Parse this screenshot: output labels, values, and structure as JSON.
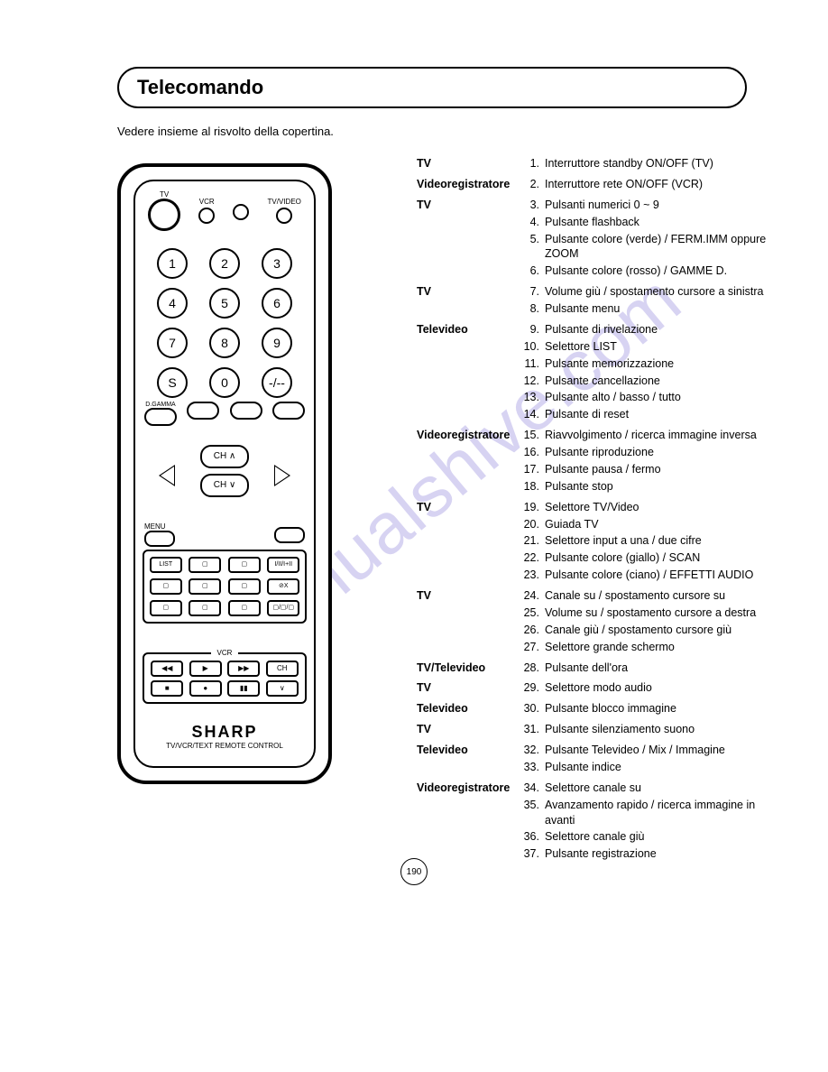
{
  "title": "Telecomando",
  "subtitle": "Vedere insieme al risvolto della copertina.",
  "watermark": "manualshive.com",
  "page_number": "190",
  "remote": {
    "top_labels": [
      "TV",
      "VCR",
      "",
      "TV/VIDEO"
    ],
    "numbers": [
      "1",
      "2",
      "3",
      "4",
      "5",
      "6",
      "7",
      "8",
      "9",
      "S",
      "0",
      "-/--"
    ],
    "mid_labels": [
      "D.GAMMA",
      "",
      "",
      ""
    ],
    "ch_up": "CH ∧",
    "ch_down": "CH ∨",
    "menu_label": "MENU",
    "text_btns": [
      "LIST",
      "▢",
      "▢",
      "I/II/I+II",
      "▢",
      "▢",
      "▢",
      "⊘X",
      "▢",
      "▢",
      "▢",
      "▢/▢/▢"
    ],
    "vcr_label": "VCR",
    "vcr_row1": [
      "◀◀",
      "▶",
      "▶▶",
      "CH"
    ],
    "vcr_row2": [
      "■",
      "●",
      "▮▮",
      "∨"
    ],
    "brand": "SHARP",
    "brand_sub": "TV/VCR/TEXT REMOTE CONTROL"
  },
  "sections": [
    {
      "cat": "TV",
      "items": [
        {
          "n": "1.",
          "d": "Interruttore standby ON/OFF (TV)"
        }
      ]
    },
    {
      "cat": "Videoregistratore",
      "items": [
        {
          "n": "2.",
          "d": "Interruttore rete ON/OFF (VCR)"
        }
      ]
    },
    {
      "cat": "TV",
      "items": [
        {
          "n": "3.",
          "d": "Pulsanti numerici 0 ~ 9"
        },
        {
          "n": "4.",
          "d": "Pulsante flashback"
        },
        {
          "n": "5.",
          "d": "Pulsante colore (verde) / FERM.IMM oppure ZOOM"
        },
        {
          "n": "6.",
          "d": "Pulsante colore (rosso) / GAMME D."
        }
      ]
    },
    {
      "cat": "TV",
      "items": [
        {
          "n": "7.",
          "d": "Volume giù / spostamento cursore a sinistra"
        },
        {
          "n": "8.",
          "d": "Pulsante menu"
        }
      ]
    },
    {
      "cat": "Televideo",
      "items": [
        {
          "n": "9.",
          "d": "Pulsante di rivelazione"
        },
        {
          "n": "10.",
          "d": "Selettore LIST"
        },
        {
          "n": "11.",
          "d": "Pulsante memorizzazione"
        },
        {
          "n": "12.",
          "d": "Pulsante cancellazione"
        },
        {
          "n": "13.",
          "d": "Pulsante alto / basso / tutto"
        },
        {
          "n": "14.",
          "d": "Pulsante di reset"
        }
      ]
    },
    {
      "cat": "Videoregistratore",
      "items": [
        {
          "n": "15.",
          "d": "Riavvolgimento / ricerca immagine inversa"
        },
        {
          "n": "16.",
          "d": "Pulsante riproduzione"
        },
        {
          "n": "17.",
          "d": "Pulsante pausa / fermo"
        },
        {
          "n": "18.",
          "d": "Pulsante stop"
        }
      ]
    },
    {
      "cat": "TV",
      "items": [
        {
          "n": "19.",
          "d": "Selettore TV/Video"
        },
        {
          "n": "20.",
          "d": "Guiada TV"
        },
        {
          "n": "21.",
          "d": "Selettore input a una / due cifre"
        },
        {
          "n": "22.",
          "d": "Pulsante colore (giallo) / SCAN"
        },
        {
          "n": "23.",
          "d": "Pulsante colore (ciano) / EFFETTI AUDIO"
        }
      ]
    },
    {
      "cat": "TV",
      "items": [
        {
          "n": "24.",
          "d": "Canale su / spostamento cursore su"
        },
        {
          "n": "25.",
          "d": "Volume su / spostamento cursore a destra"
        },
        {
          "n": "26.",
          "d": "Canale giù / spostamento cursore giù"
        },
        {
          "n": "27.",
          "d": "Selettore grande schermo"
        }
      ]
    },
    {
      "cat": "TV/Televideo",
      "items": [
        {
          "n": "28.",
          "d": "Pulsante dell'ora"
        }
      ]
    },
    {
      "cat": "TV",
      "items": [
        {
          "n": "29.",
          "d": "Selettore modo audio"
        }
      ]
    },
    {
      "cat": "Televideo",
      "items": [
        {
          "n": "30.",
          "d": "Pulsante blocco immagine"
        }
      ]
    },
    {
      "cat": "TV",
      "items": [
        {
          "n": "31.",
          "d": "Pulsante silenziamento suono"
        }
      ]
    },
    {
      "cat": "Televideo",
      "items": [
        {
          "n": "32.",
          "d": "Pulsante Televideo / Mix / Immagine"
        },
        {
          "n": "33.",
          "d": "Pulsante indice"
        }
      ]
    },
    {
      "cat": "Videoregistratore",
      "items": [
        {
          "n": "34.",
          "d": "Selettore canale su"
        },
        {
          "n": "35.",
          "d": "Avanzamento rapido / ricerca immagine in avanti"
        },
        {
          "n": "36.",
          "d": "Selettore canale giù"
        },
        {
          "n": "37.",
          "d": "Pulsante registrazione"
        }
      ]
    }
  ]
}
